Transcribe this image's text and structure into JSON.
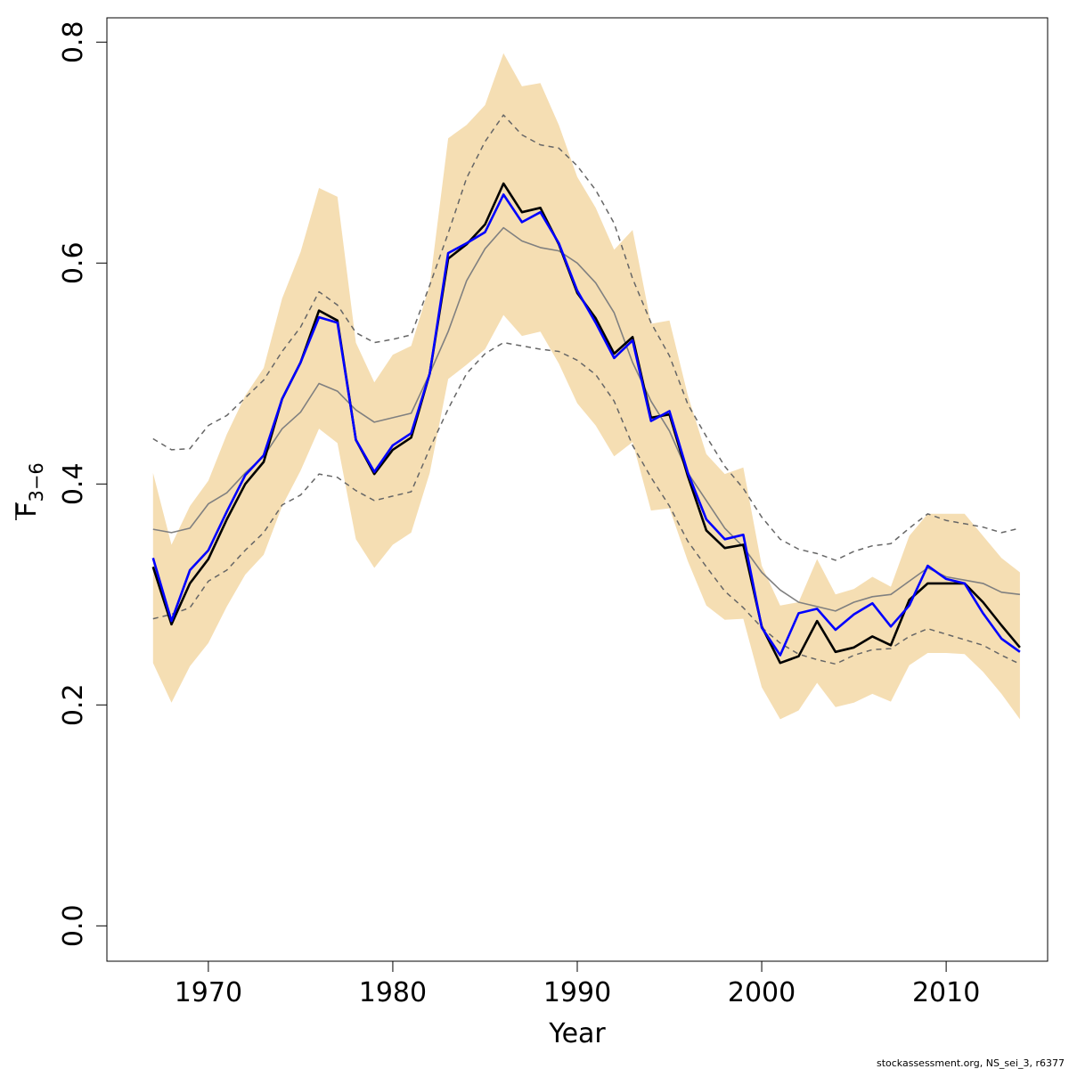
{
  "chart_data": {
    "type": "line",
    "title": "",
    "xlabel": "Year",
    "ylabel": "F",
    "ylabel_subscript": "3−6",
    "xlim": [
      1964.5,
      2015.5
    ],
    "ylim": [
      -0.032,
      0.822
    ],
    "x_ticks": [
      {
        "value": 1970,
        "label": "1970"
      },
      {
        "value": 1980,
        "label": "1980"
      },
      {
        "value": 1990,
        "label": "1990"
      },
      {
        "value": 2000,
        "label": "2000"
      },
      {
        "value": 2010,
        "label": "2010"
      }
    ],
    "y_ticks": [
      {
        "value": 0.0,
        "label": "0.0"
      },
      {
        "value": 0.2,
        "label": "0.2"
      },
      {
        "value": 0.4,
        "label": "0.4"
      },
      {
        "value": 0.6,
        "label": "0.6"
      },
      {
        "value": 0.8,
        "label": "0.8"
      }
    ],
    "grid": false,
    "colors": {
      "band": "#f5deb3",
      "black_line": "#000000",
      "blue_line": "#0000ff",
      "grey_line": "#808080",
      "dashed_line": "#666666",
      "axes": "#000000"
    },
    "x": [
      1967,
      1968,
      1969,
      1970,
      1971,
      1972,
      1973,
      1974,
      1975,
      1976,
      1977,
      1978,
      1979,
      1980,
      1981,
      1982,
      1983,
      1984,
      1985,
      1986,
      1987,
      1988,
      1989,
      1990,
      1991,
      1992,
      1993,
      1994,
      1995,
      1996,
      1997,
      1998,
      1999,
      2000,
      2001,
      2002,
      2003,
      2004,
      2005,
      2006,
      2007,
      2008,
      2009,
      2010,
      2011,
      2012,
      2013,
      2014
    ],
    "band": {
      "upper": [
        0.41,
        0.345,
        0.38,
        0.403,
        0.445,
        0.48,
        0.505,
        0.568,
        0.61,
        0.668,
        0.66,
        0.528,
        0.492,
        0.517,
        0.525,
        0.58,
        0.713,
        0.725,
        0.743,
        0.79,
        0.76,
        0.763,
        0.725,
        0.678,
        0.65,
        0.612,
        0.63,
        0.545,
        0.548,
        0.48,
        0.427,
        0.409,
        0.415,
        0.326,
        0.29,
        0.293,
        0.332,
        0.3,
        0.305,
        0.316,
        0.307,
        0.353,
        0.373,
        0.373,
        0.373,
        0.353,
        0.333,
        0.32
      ],
      "lower": [
        0.238,
        0.202,
        0.235,
        0.256,
        0.289,
        0.318,
        0.336,
        0.38,
        0.412,
        0.45,
        0.437,
        0.35,
        0.324,
        0.345,
        0.356,
        0.41,
        0.495,
        0.508,
        0.522,
        0.553,
        0.534,
        0.538,
        0.509,
        0.473,
        0.453,
        0.425,
        0.438,
        0.376,
        0.378,
        0.33,
        0.29,
        0.277,
        0.278,
        0.216,
        0.187,
        0.195,
        0.22,
        0.198,
        0.202,
        0.21,
        0.203,
        0.236,
        0.247,
        0.247,
        0.246,
        0.23,
        0.21,
        0.187
      ]
    },
    "series": [
      {
        "key": "black",
        "values": [
          0.325,
          0.273,
          0.31,
          0.332,
          0.368,
          0.4,
          0.42,
          0.477,
          0.51,
          0.557,
          0.548,
          0.44,
          0.409,
          0.431,
          0.442,
          0.5,
          0.604,
          0.617,
          0.635,
          0.672,
          0.646,
          0.65,
          0.617,
          0.573,
          0.55,
          0.518,
          0.533,
          0.46,
          0.463,
          0.407,
          0.358,
          0.342,
          0.345,
          0.271,
          0.238,
          0.244,
          0.276,
          0.248,
          0.252,
          0.262,
          0.254,
          0.295,
          0.31,
          0.31,
          0.31,
          0.293,
          0.272,
          0.252
        ]
      },
      {
        "key": "blue",
        "values": [
          0.333,
          0.276,
          0.322,
          0.34,
          0.375,
          0.408,
          0.426,
          0.477,
          0.51,
          0.551,
          0.546,
          0.44,
          0.411,
          0.435,
          0.446,
          0.5,
          0.609,
          0.618,
          0.628,
          0.662,
          0.637,
          0.646,
          0.618,
          0.575,
          0.546,
          0.514,
          0.53,
          0.457,
          0.466,
          0.41,
          0.368,
          0.35,
          0.354,
          0.27,
          0.245,
          0.283,
          0.287,
          0.268,
          0.282,
          0.292,
          0.271,
          0.29,
          0.326,
          0.314,
          0.31,
          0.283,
          0.26,
          0.248
        ]
      },
      {
        "key": "grey",
        "values": [
          0.359,
          0.356,
          0.36,
          0.382,
          0.392,
          0.41,
          0.425,
          0.45,
          0.465,
          0.491,
          0.484,
          0.467,
          0.456,
          0.46,
          0.464,
          0.5,
          0.538,
          0.584,
          0.613,
          0.632,
          0.62,
          0.614,
          0.611,
          0.6,
          0.582,
          0.555,
          0.51,
          0.475,
          0.448,
          0.41,
          0.385,
          0.36,
          0.343,
          0.32,
          0.304,
          0.293,
          0.289,
          0.285,
          0.293,
          0.298,
          0.3,
          0.312,
          0.324,
          0.316,
          0.313,
          0.31,
          0.302,
          0.3
        ]
      },
      {
        "key": "dashed_upper",
        "values": [
          0.441,
          0.431,
          0.432,
          0.453,
          0.462,
          0.478,
          0.494,
          0.52,
          0.542,
          0.574,
          0.562,
          0.537,
          0.528,
          0.531,
          0.535,
          0.58,
          0.627,
          0.677,
          0.71,
          0.734,
          0.716,
          0.707,
          0.704,
          0.688,
          0.666,
          0.636,
          0.586,
          0.546,
          0.516,
          0.472,
          0.443,
          0.416,
          0.396,
          0.37,
          0.35,
          0.341,
          0.337,
          0.331,
          0.339,
          0.344,
          0.346,
          0.36,
          0.373,
          0.367,
          0.364,
          0.361,
          0.356,
          0.36
        ]
      },
      {
        "key": "dashed_lower",
        "values": [
          0.278,
          0.282,
          0.288,
          0.312,
          0.322,
          0.34,
          0.356,
          0.381,
          0.39,
          0.409,
          0.406,
          0.394,
          0.385,
          0.389,
          0.393,
          0.432,
          0.468,
          0.5,
          0.518,
          0.528,
          0.525,
          0.522,
          0.52,
          0.512,
          0.499,
          0.475,
          0.435,
          0.406,
          0.38,
          0.348,
          0.325,
          0.303,
          0.288,
          0.27,
          0.256,
          0.246,
          0.241,
          0.237,
          0.245,
          0.25,
          0.251,
          0.262,
          0.269,
          0.264,
          0.259,
          0.254,
          0.245,
          0.237
        ]
      }
    ]
  },
  "footer": {
    "text": "stockassessment.org, NS_sei_3, r6377"
  }
}
